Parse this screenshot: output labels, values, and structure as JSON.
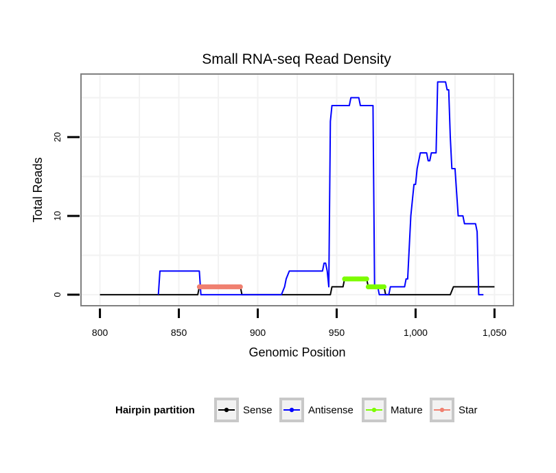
{
  "chart_data": {
    "type": "line",
    "title": "Small RNA-seq Read Density",
    "xlabel": "Genomic Position",
    "ylabel": "Total Reads",
    "xlim": [
      788,
      1062
    ],
    "ylim": [
      -1.4,
      28
    ],
    "xticks": [
      800,
      850,
      900,
      950,
      1000,
      1050
    ],
    "xtick_labels": [
      "800",
      "850",
      "900",
      "950",
      "1,000",
      "1,050"
    ],
    "yticks": [
      0,
      10,
      20
    ],
    "ytick_labels": [
      "0",
      "10",
      "20"
    ],
    "grid": true,
    "legend": {
      "title": "Hairpin partition",
      "position": "bottom"
    },
    "series": [
      {
        "name": "Sense",
        "color": "#000000",
        "style": "line",
        "points": [
          [
            800,
            0
          ],
          [
            862,
            0
          ],
          [
            863,
            1
          ],
          [
            889,
            1
          ],
          [
            890,
            0
          ],
          [
            946,
            0
          ],
          [
            947,
            1
          ],
          [
            954,
            1
          ],
          [
            955,
            2
          ],
          [
            969,
            2
          ],
          [
            970,
            1
          ],
          [
            980,
            1
          ],
          [
            981,
            0
          ],
          [
            1022,
            0
          ],
          [
            1024,
            1
          ],
          [
            1050,
            1
          ]
        ]
      },
      {
        "name": "Antisense",
        "color": "#0000ff",
        "style": "line",
        "points": [
          [
            837,
            0
          ],
          [
            838,
            3
          ],
          [
            863,
            3
          ],
          [
            864,
            0
          ],
          [
            915,
            0
          ],
          [
            917,
            1
          ],
          [
            918,
            2
          ],
          [
            920,
            3
          ],
          [
            941,
            3
          ],
          [
            942,
            4
          ],
          [
            943,
            4
          ],
          [
            944,
            3
          ],
          [
            945,
            1
          ],
          [
            946,
            22
          ],
          [
            947,
            24
          ],
          [
            958,
            24
          ],
          [
            959,
            25
          ],
          [
            964,
            25
          ],
          [
            965,
            24
          ],
          [
            973,
            24
          ],
          [
            974,
            1
          ],
          [
            976,
            1
          ],
          [
            977,
            0
          ],
          [
            983,
            0
          ],
          [
            984,
            1
          ],
          [
            993,
            1
          ],
          [
            994,
            2
          ],
          [
            995,
            2
          ],
          [
            996,
            6
          ],
          [
            997,
            10
          ],
          [
            998,
            12
          ],
          [
            999,
            14
          ],
          [
            1000,
            14
          ],
          [
            1001,
            16
          ],
          [
            1003,
            18
          ],
          [
            1007,
            18
          ],
          [
            1008,
            17
          ],
          [
            1009,
            17
          ],
          [
            1010,
            18
          ],
          [
            1013,
            18
          ],
          [
            1014,
            27
          ],
          [
            1019,
            27
          ],
          [
            1020,
            26
          ],
          [
            1021,
            26
          ],
          [
            1022,
            20
          ],
          [
            1023,
            16
          ],
          [
            1025,
            16
          ],
          [
            1026,
            13
          ],
          [
            1027,
            10
          ],
          [
            1030,
            10
          ],
          [
            1031,
            9
          ],
          [
            1038,
            9
          ],
          [
            1039,
            8
          ],
          [
            1040,
            0
          ],
          [
            1043,
            0
          ]
        ]
      },
      {
        "name": "Mature",
        "color": "#7cfc00",
        "style": "points",
        "segments": [
          {
            "y": 2,
            "x": [
              955,
              956,
              957,
              958,
              959,
              960,
              961,
              962,
              963,
              964,
              965,
              966,
              967,
              968,
              969
            ]
          },
          {
            "y": 1,
            "x": [
              970,
              971,
              972,
              973,
              974,
              975,
              976,
              977,
              978,
              979,
              980
            ]
          }
        ]
      },
      {
        "name": "Star",
        "color": "#f08070",
        "style": "points",
        "segments": [
          {
            "y": 1,
            "x": [
              863,
              864,
              865,
              866,
              867,
              868,
              869,
              870,
              871,
              872,
              873,
              874,
              875,
              876,
              877,
              878,
              879,
              880,
              881,
              882,
              883,
              884,
              885,
              886,
              887,
              888,
              889
            ]
          }
        ]
      }
    ]
  }
}
